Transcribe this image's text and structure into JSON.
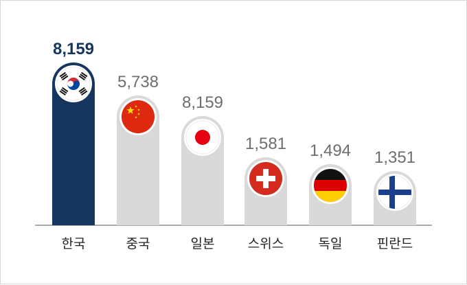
{
  "chart_data": {
    "type": "bar",
    "categories": [
      "한국",
      "중국",
      "일본",
      "스위스",
      "독일",
      "핀란드"
    ],
    "values": [
      8159,
      5738,
      8159,
      1581,
      1494,
      1351
    ],
    "value_labels": [
      "8,159",
      "5,738",
      "8,159",
      "1,581",
      "1,494",
      "1,351"
    ],
    "highlight_index": 0,
    "flag_icons": [
      "south-korea-flag-icon",
      "china-flag-icon",
      "japan-flag-icon",
      "switzerland-flag-icon",
      "germany-flag-icon",
      "finland-flag-icon"
    ],
    "colors": {
      "highlight_bar": "#17365f",
      "bar": "#d9d9d9",
      "highlight_label": "#17365f",
      "label": "#6e6e6e",
      "axis": "#555555"
    }
  }
}
